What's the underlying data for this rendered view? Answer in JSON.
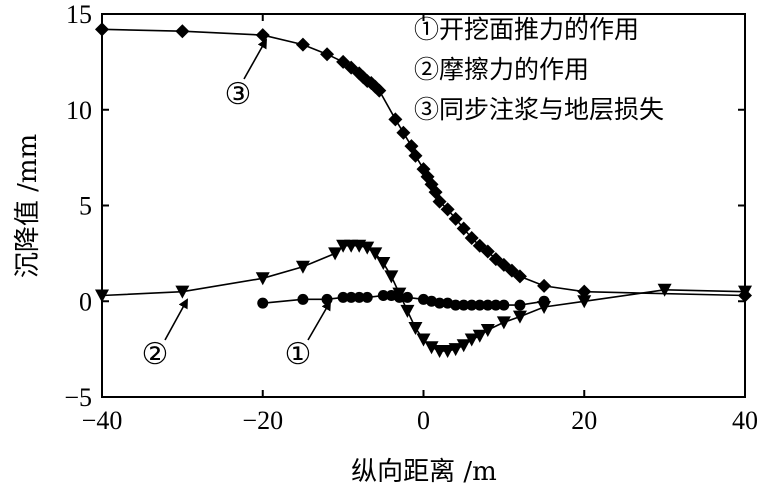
{
  "chart_data": {
    "type": "line",
    "xlabel": "纵向距离 /m",
    "ylabel": "沉降值 /mm",
    "xlim": [
      -40,
      40
    ],
    "ylim": [
      -5,
      15
    ],
    "xticks": [
      -40,
      -20,
      0,
      20,
      40
    ],
    "yticks": [
      -5,
      0,
      5,
      10,
      15
    ],
    "xtick_labels": [
      "−40",
      "−20",
      "0",
      "20",
      "40"
    ],
    "ytick_labels": [
      "−5",
      "0",
      "5",
      "10",
      "15"
    ],
    "grid": false,
    "legend_position": "top-right",
    "legend": [
      "①开挖面推力的作用",
      "②摩擦力的作用",
      "③同步注浆与地层损失"
    ],
    "callouts": [
      {
        "label": "①",
        "series": 0
      },
      {
        "label": "②",
        "series": 1
      },
      {
        "label": "③",
        "series": 2
      }
    ],
    "series": [
      {
        "marker": "circle",
        "x": [
          -20,
          -15,
          -12,
          -10,
          -9,
          -8,
          -7,
          -5,
          -4,
          -3,
          -2,
          0,
          1,
          2,
          3,
          4,
          5,
          6,
          7,
          8,
          9,
          10,
          12,
          15
        ],
        "y": [
          -0.1,
          0.1,
          0.1,
          0.2,
          0.2,
          0.2,
          0.2,
          0.3,
          0.3,
          0.2,
          0.2,
          0.1,
          0.0,
          -0.1,
          -0.1,
          -0.2,
          -0.2,
          -0.2,
          -0.2,
          -0.2,
          -0.2,
          -0.2,
          -0.2,
          0.0
        ]
      },
      {
        "marker": "triangle-down",
        "x": [
          -40,
          -30,
          -20,
          -15,
          -11,
          -10,
          -9,
          -8,
          -7,
          -6,
          -5,
          -4,
          -3,
          -2,
          -1,
          0,
          1,
          2,
          3,
          4,
          5,
          6,
          7,
          8,
          10,
          12,
          15,
          20,
          30,
          40
        ],
        "y": [
          0.3,
          0.5,
          1.2,
          1.8,
          2.5,
          2.9,
          2.9,
          2.9,
          2.8,
          2.5,
          2.0,
          1.3,
          0.4,
          -0.5,
          -1.4,
          -2.0,
          -2.4,
          -2.6,
          -2.6,
          -2.5,
          -2.3,
          -2.0,
          -1.8,
          -1.5,
          -1.1,
          -0.8,
          -0.3,
          0.0,
          0.6,
          0.5
        ]
      },
      {
        "marker": "diamond",
        "x": [
          -40,
          -30,
          -20,
          -15,
          -12,
          -10,
          -9,
          -8,
          -7.5,
          -7,
          -6.5,
          -6,
          -5.5,
          -3.5,
          -2.5,
          -1.5,
          -1,
          0,
          0.5,
          1,
          1.5,
          2,
          3,
          4,
          5,
          6,
          7,
          8,
          9,
          10,
          11,
          12,
          15,
          20,
          40
        ],
        "y": [
          14.2,
          14.1,
          13.9,
          13.4,
          12.9,
          12.5,
          12.2,
          11.9,
          11.7,
          11.5,
          11.4,
          11.2,
          11.0,
          9.5,
          8.8,
          8.1,
          7.6,
          6.9,
          6.5,
          6.1,
          5.7,
          5.2,
          4.8,
          4.3,
          3.8,
          3.3,
          2.9,
          2.6,
          2.2,
          1.9,
          1.6,
          1.3,
          0.8,
          0.5,
          0.3
        ]
      }
    ]
  }
}
